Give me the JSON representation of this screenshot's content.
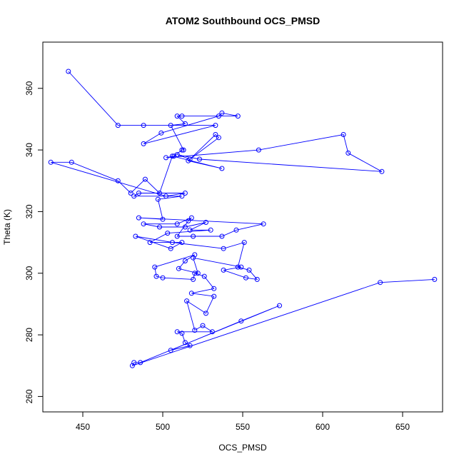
{
  "chart_data": {
    "type": "scatter",
    "title": "ATOM2 Southbound OCS_PMSD",
    "xlabel": "OCS_PMSD",
    "ylabel": "Theta (K)",
    "xlim": [
      425,
      675
    ],
    "ylim": [
      255,
      375
    ],
    "xticks": [
      450,
      500,
      550,
      600,
      650
    ],
    "yticks": [
      260,
      280,
      300,
      320,
      340,
      360
    ],
    "grid": false,
    "legend": "none",
    "connected": true,
    "series": [
      {
        "color": "#0000ff",
        "points": [
          [
            441,
            365.5
          ],
          [
            472,
            348
          ],
          [
            488,
            348
          ],
          [
            533,
            348
          ],
          [
            488,
            342
          ],
          [
            499,
            345.5
          ],
          [
            535,
            351
          ],
          [
            537,
            352
          ],
          [
            547,
            351
          ],
          [
            512,
            351
          ],
          [
            509,
            351
          ],
          [
            514,
            348.5
          ],
          [
            505,
            348
          ],
          [
            513,
            340
          ],
          [
            512,
            340
          ],
          [
            507,
            338
          ],
          [
            502,
            337.5
          ],
          [
            560,
            340
          ],
          [
            613,
            345
          ],
          [
            616,
            339
          ],
          [
            637,
            333
          ],
          [
            523,
            337
          ],
          [
            509,
            338.5
          ],
          [
            517,
            337
          ],
          [
            535,
            344
          ],
          [
            533,
            345
          ],
          [
            516,
            336.5
          ],
          [
            537,
            334
          ],
          [
            506,
            338
          ],
          [
            498,
            326
          ],
          [
            489,
            330.5
          ],
          [
            480,
            326
          ],
          [
            472,
            330
          ],
          [
            443,
            336
          ],
          [
            430,
            336
          ],
          [
            502,
            325
          ],
          [
            514,
            326
          ],
          [
            485,
            326
          ],
          [
            482,
            325
          ],
          [
            512,
            325
          ],
          [
            497,
            324
          ],
          [
            500,
            317.5
          ],
          [
            485,
            318
          ],
          [
            563,
            316
          ],
          [
            546,
            314
          ],
          [
            537,
            312
          ],
          [
            519,
            312
          ],
          [
            509,
            312
          ],
          [
            516,
            317
          ],
          [
            518,
            318
          ],
          [
            509,
            316
          ],
          [
            488,
            316
          ],
          [
            498,
            315
          ],
          [
            514,
            315
          ],
          [
            527,
            316.5
          ],
          [
            517,
            314
          ],
          [
            530,
            314
          ],
          [
            503,
            313
          ],
          [
            492,
            310
          ],
          [
            512,
            310
          ],
          [
            505,
            308
          ],
          [
            483,
            312
          ],
          [
            506,
            310
          ],
          [
            538,
            308
          ],
          [
            551,
            310
          ],
          [
            547,
            302
          ],
          [
            554,
            301
          ],
          [
            559,
            298
          ],
          [
            552,
            298.5
          ],
          [
            538,
            301
          ],
          [
            549,
            302
          ],
          [
            519,
            305
          ],
          [
            522,
            300
          ],
          [
            510,
            301.5
          ],
          [
            514,
            304
          ],
          [
            520,
            306
          ],
          [
            495,
            302
          ],
          [
            496,
            299
          ],
          [
            500,
            298.5
          ],
          [
            519,
            298
          ],
          [
            520,
            300
          ],
          [
            526,
            299
          ],
          [
            532,
            295
          ],
          [
            518,
            293.5
          ],
          [
            532,
            292.5
          ],
          [
            527,
            287
          ],
          [
            515,
            291
          ],
          [
            520,
            281.5
          ],
          [
            525,
            283
          ],
          [
            531,
            281
          ],
          [
            509,
            281
          ],
          [
            512,
            280.5
          ],
          [
            514,
            277.5
          ],
          [
            517,
            276.5
          ],
          [
            505,
            275
          ],
          [
            549,
            284.5
          ],
          [
            573,
            289.5
          ],
          [
            486,
            271
          ],
          [
            482,
            271
          ],
          [
            481,
            270
          ],
          [
            636,
            297
          ],
          [
            670,
            298
          ]
        ]
      }
    ]
  }
}
